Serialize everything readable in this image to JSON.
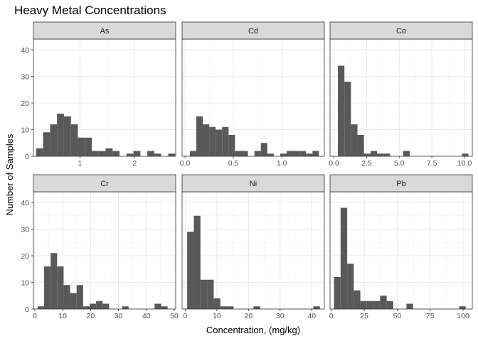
{
  "chart_data": {
    "type": "bar",
    "title": "Heavy Metal Concentrations",
    "xlabel": "Concentration, (mg/kg)",
    "ylabel": "Number of Samples",
    "y_ticks": [
      0,
      10,
      20,
      30,
      40
    ],
    "ylim": [
      0,
      44
    ],
    "grid": true,
    "facets": [
      {
        "name": "As",
        "xlim": [
          0.15,
          2.75
        ],
        "x_ticks": [
          1,
          2
        ],
        "bin_start": 0.2,
        "bin_width": 0.127,
        "counts": [
          3,
          9,
          12,
          16,
          15,
          12,
          7,
          7,
          2,
          2,
          3,
          2,
          0,
          1,
          2,
          0,
          2,
          1,
          0,
          1
        ]
      },
      {
        "name": "Cd",
        "xlim": [
          -0.03,
          1.44
        ],
        "x_ticks": [
          0.0,
          0.5,
          1.0
        ],
        "x_tick_labels": [
          "0.0",
          "0.5",
          "1.0"
        ],
        "bin_start": 0.05,
        "bin_width": 0.0667,
        "counts": [
          2,
          15,
          12,
          11,
          10,
          11,
          8,
          2,
          2,
          0,
          2,
          5,
          1,
          0,
          1,
          2,
          2,
          2,
          1,
          2
        ]
      },
      {
        "name": "Co",
        "xlim": [
          -0.3,
          10.6
        ],
        "x_ticks": [
          0.0,
          2.5,
          5.0,
          7.5,
          10.0
        ],
        "x_tick_labels": [
          "0.0",
          "2.5",
          "5.0",
          "7.5",
          "10.0"
        ],
        "bin_start": 0.3,
        "bin_width": 0.5,
        "counts": [
          34,
          28,
          12,
          8,
          1,
          2,
          1,
          1,
          0,
          0,
          2,
          0,
          0,
          0,
          0,
          0,
          0,
          0,
          0,
          1
        ]
      },
      {
        "name": "Cr",
        "xlim": [
          -0.5,
          50.5
        ],
        "x_ticks": [
          0,
          10,
          20,
          30,
          40,
          50
        ],
        "bin_start": 1.0,
        "bin_width": 2.33,
        "counts": [
          1,
          16,
          21,
          16,
          9,
          6,
          9,
          1,
          2,
          3,
          2,
          0,
          0,
          1,
          0,
          0,
          0,
          0,
          2,
          1
        ]
      },
      {
        "name": "Ni",
        "xlim": [
          -1.0,
          44.0
        ],
        "x_ticks": [
          0,
          10,
          20,
          30,
          40
        ],
        "bin_start": 0.6,
        "bin_width": 2.1,
        "counts": [
          29,
          35,
          11,
          11,
          4,
          1,
          1,
          0,
          0,
          0,
          1,
          0,
          0,
          0,
          0,
          0,
          0,
          0,
          0,
          1
        ]
      },
      {
        "name": "Pb",
        "xlim": [
          -1.0,
          107.0
        ],
        "x_ticks": [
          0,
          25,
          50,
          75,
          100
        ],
        "bin_start": 2.0,
        "bin_width": 5.0,
        "counts": [
          12,
          38,
          17,
          7,
          3,
          3,
          3,
          5,
          3,
          0,
          0,
          2,
          0,
          0,
          0,
          0,
          0,
          0,
          0,
          1
        ]
      }
    ]
  },
  "colors": {
    "bar": "#595959",
    "strip_fill": "#d9d9d9",
    "panel_border": "#333333",
    "grid_major": "#ebebeb",
    "grid_minor": "#f4f4f4",
    "tick_text": "#4d4d4d"
  }
}
